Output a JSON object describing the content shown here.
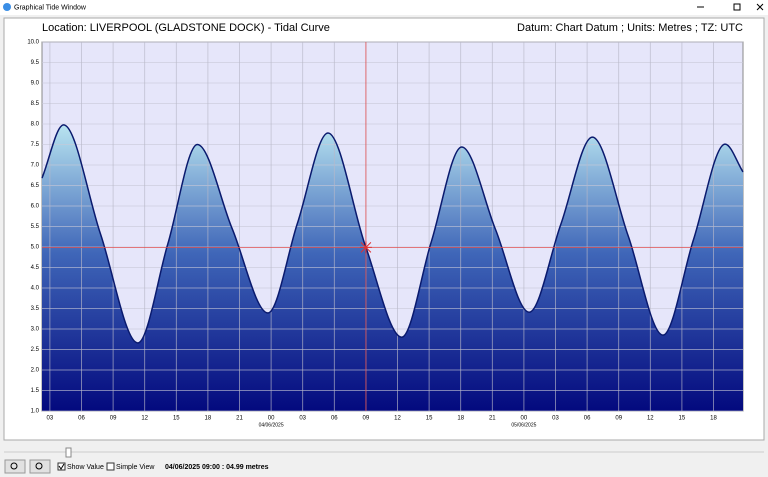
{
  "window": {
    "title": "Graphical Tide Window",
    "show_value": "Show Value",
    "simple_view": "Simple View",
    "status": "04/06/2025 09:00 : 04.99 metres"
  },
  "chart_data": {
    "type": "area",
    "title": "Location: LIVERPOOL (GLADSTONE DOCK) - Tidal Curve",
    "subtitle": "Datum: Chart Datum ; Units: Metres ; TZ: UTC",
    "x": [
      2.25,
      4.3,
      7.8,
      11.35,
      14.2,
      17.0,
      20.3,
      23.7,
      26.5,
      29.4,
      33,
      36.4,
      39.2,
      42.1,
      45.3,
      48.5,
      51.5,
      54.5,
      57.9,
      61.2,
      64.1,
      67.1,
      68.8
    ],
    "values": [
      6.68,
      7.98,
      5.32,
      2.66,
      5.08,
      7.5,
      5.45,
      3.39,
      5.58,
      7.78,
      4.99,
      2.8,
      5.12,
      7.44,
      5.43,
      3.41,
      5.55,
      7.68,
      5.27,
      2.85,
      5.18,
      7.51,
      6.83
    ],
    "color": "#0a1a6e",
    "xlim": [
      2.25,
      68.8
    ],
    "xticks": [
      {
        "value": 3,
        "label": "03"
      },
      {
        "value": 6,
        "label": "06"
      },
      {
        "value": 9,
        "label": "09"
      },
      12,
      15,
      18,
      21,
      {
        "value": 24,
        "label": "00"
      },
      {
        "value": 27,
        "label": "03"
      },
      {
        "value": 30,
        "label": "06"
      },
      {
        "value": 33,
        "label": "09"
      },
      {
        "value": 36,
        "label": "12"
      },
      {
        "value": 39,
        "label": "15"
      },
      {
        "value": 42,
        "label": "18"
      },
      {
        "value": 45,
        "label": "21"
      },
      {
        "value": 48,
        "label": "00"
      },
      {
        "value": 51,
        "label": "03"
      },
      {
        "value": 54,
        "label": "06"
      },
      {
        "value": 57,
        "label": "09"
      },
      {
        "value": 60,
        "label": "12"
      },
      {
        "value": 63,
        "label": "15"
      },
      {
        "value": 66,
        "label": "18"
      }
    ],
    "x_date_labels": [
      {
        "value": 24,
        "label": "04/06/2025"
      },
      {
        "value": 48,
        "label": "05/06/2025"
      }
    ],
    "ylim": [
      1,
      10
    ],
    "yticks": [
      {
        "value": 1,
        "label": "1.0"
      },
      {
        "value": 1.5,
        "label": "1.5"
      },
      {
        "value": 2,
        "label": "2.0"
      },
      {
        "value": 2.5,
        "label": "2.5"
      },
      {
        "value": 3,
        "label": "3.0"
      },
      {
        "value": 3.5,
        "label": "3.5"
      },
      {
        "value": 4,
        "label": "4.0"
      },
      {
        "value": 4.5,
        "label": "4.5"
      },
      {
        "value": 5,
        "label": "5.0"
      },
      {
        "value": 5.5,
        "label": "5.5"
      },
      {
        "value": 6,
        "label": "6.0"
      },
      {
        "value": 6.5,
        "label": "6.5"
      },
      {
        "value": 7,
        "label": "7.0"
      },
      {
        "value": 7.5,
        "label": "7.5"
      },
      {
        "value": 8,
        "label": "8.0"
      },
      {
        "value": 8.5,
        "label": "8.5"
      },
      {
        "value": 9,
        "label": "9.0"
      },
      {
        "value": 9.5,
        "label": "9.5"
      },
      {
        "value": 10,
        "label": "10.0"
      }
    ],
    "grid": true,
    "cursor": {
      "x": 33,
      "y": 4.99
    }
  }
}
